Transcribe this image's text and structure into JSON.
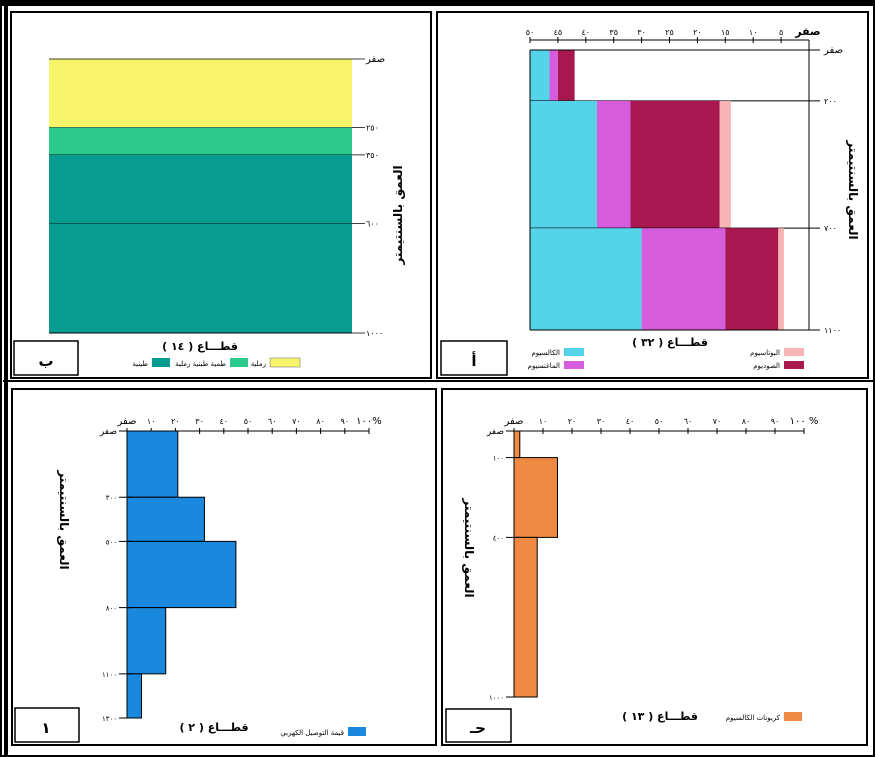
{
  "panels": {
    "a": {
      "tag": "أ",
      "caption": "قطـــاع ( ٣٢ )",
      "ylabel": "العمق بالسنتيمتر",
      "x_zero_label": "صفر",
      "depth_labels": [
        "صفر",
        "٢٠٠",
        "٧٠٠",
        "١١٠٠"
      ],
      "x_ticks": [
        "٥٠",
        "٤٥",
        "٤٠",
        "٣٥",
        "٣٠",
        "٢٥",
        "٢٠",
        "١٥",
        "١٠",
        "٥"
      ]
    },
    "b": {
      "tag": "ب",
      "caption": "قطـــاع ( ١٤ )",
      "ylabel": "العمق بالسنتيمتر",
      "depth_labels": [
        "صفر",
        "٢٥٠",
        "٣٥٠",
        "٦٠٠",
        "١٠٠٠"
      ]
    },
    "c": {
      "tag": "حـ",
      "caption": "قطـــاع ( ١٣ )",
      "ylabel": "العمق بالسنتيمتر",
      "x_ticks": [
        "صفر",
        "١٠",
        "٢٠",
        "٣٠",
        "٤٠",
        "٥٠",
        "٦٠",
        "٧٠",
        "٨٠",
        "٩٠",
        "١٠٠ %"
      ],
      "depth_labels": [
        "صفر",
        "١٠٠",
        "٤٠٠",
        "١٠٠٠"
      ]
    },
    "d": {
      "tag": "١",
      "caption": "قطـــاع ( ٢ )",
      "ylabel": "العمق بالسنتيمتر",
      "x_ticks": [
        "صفر",
        "١٠",
        "٢٠",
        "٣٠",
        "٤٠",
        "٥٠",
        "٦٠",
        "٧٠",
        "٨٠",
        "٩٠",
        "١٠٠%"
      ],
      "depth_labels": [
        "صفر",
        "٣٠٠",
        "٥٠٠",
        "٨٠٠",
        "١١٠٠",
        "١٣٠٠"
      ]
    }
  },
  "chart_data": [
    {
      "id": "a",
      "type": "bar",
      "orientation": "horizontal-stacked",
      "title": "قطـــاع ( ٣٢ )",
      "ylabel": "العمق بالسنتيمتر",
      "depth_layers": [
        [
          0,
          200
        ],
        [
          200,
          700
        ],
        [
          700,
          1100
        ]
      ],
      "xlim": [
        0,
        50
      ],
      "series": [
        {
          "name": "الكالسيوم",
          "color": "#55d3e8",
          "values": [
            3.5,
            12,
            20
          ]
        },
        {
          "name": "الماغنسيوم",
          "color": "#d65cde",
          "values": [
            1.5,
            6,
            15
          ]
        },
        {
          "name": "الصوديوم",
          "color": "#a8184f",
          "values": [
            3,
            16,
            9.5
          ]
        },
        {
          "name": "البوتاسيوم",
          "color": "#f7b4b4",
          "values": [
            0,
            2,
            1
          ]
        }
      ]
    },
    {
      "id": "b",
      "type": "bar",
      "orientation": "stacked-layers",
      "title": "قطـــاع ( ١٤ )",
      "ylabel": "العمق بالسنتيمتر",
      "layers": [
        {
          "from": 0,
          "to": 250,
          "name": "رملية",
          "color": "#f7f46a"
        },
        {
          "from": 250,
          "to": 350,
          "name": "طمية طينية رملية",
          "color": "#2cc98c"
        },
        {
          "from": 350,
          "to": 600,
          "name": "طينية",
          "color": "#089c90"
        },
        {
          "from": 600,
          "to": 1000,
          "name": "طينية",
          "color": "#089c90"
        }
      ],
      "legend": [
        {
          "name": "رملية",
          "color": "#f7f46a"
        },
        {
          "name": "طمية طينية رملية",
          "color": "#2cc98c"
        },
        {
          "name": "طينية",
          "color": "#089c90"
        }
      ]
    },
    {
      "id": "c",
      "type": "bar",
      "orientation": "horizontal",
      "title": "قطـــاع ( ١٣ )",
      "ylabel": "العمق بالسنتيمتر",
      "xlim": [
        0,
        100
      ],
      "series": [
        {
          "name": "كربونات الكالسيوم",
          "color": "#f08a42",
          "layers": [
            [
              0,
              100,
              2
            ],
            [
              100,
              400,
              15
            ],
            [
              400,
              1000,
              8
            ]
          ]
        }
      ]
    },
    {
      "id": "d",
      "type": "bar",
      "orientation": "horizontal",
      "title": "قطـــاع ( ٢ )",
      "ylabel": "العمق بالسنتيمتر",
      "xlim": [
        0,
        100
      ],
      "series": [
        {
          "name": "قيمة التوصيل الكهربي",
          "color": "#1a88dd",
          "layers": [
            [
              0,
              300,
              21
            ],
            [
              300,
              500,
              32
            ],
            [
              500,
              800,
              45
            ],
            [
              800,
              1100,
              16
            ],
            [
              1100,
              1300,
              6
            ]
          ]
        }
      ]
    }
  ]
}
